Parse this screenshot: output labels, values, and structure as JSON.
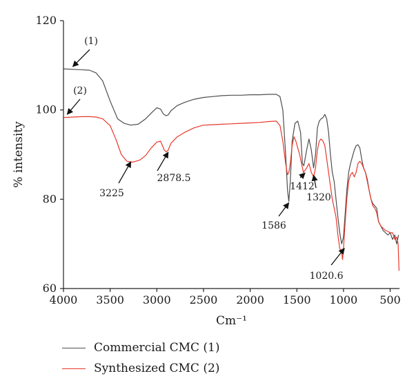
{
  "chart_data": {
    "type": "line",
    "xlabel": "Cm⁻¹",
    "ylabel": "% intensity",
    "xlim": [
      4000,
      400
    ],
    "ylim": [
      60,
      120
    ],
    "x_reversed": true,
    "grid": false,
    "xticks": [
      4000,
      3500,
      3000,
      2500,
      2000,
      1500,
      1000,
      500
    ],
    "yticks": [
      60,
      80,
      100,
      120
    ],
    "legend_position": "bottom-left",
    "series": [
      {
        "name": "Commercial CMC (1)",
        "label": "(1)",
        "color": "#4d4d4d",
        "x": [
          4000,
          3900,
          3800,
          3720,
          3650,
          3580,
          3500,
          3420,
          3350,
          3280,
          3200,
          3120,
          3050,
          3000,
          2960,
          2930,
          2900,
          2878,
          2850,
          2780,
          2700,
          2600,
          2500,
          2400,
          2300,
          2200,
          2100,
          2000,
          1900,
          1800,
          1720,
          1680,
          1650,
          1620,
          1600,
          1586,
          1570,
          1550,
          1520,
          1490,
          1460,
          1440,
          1425,
          1412,
          1395,
          1370,
          1345,
          1320,
          1300,
          1280,
          1260,
          1240,
          1220,
          1200,
          1180,
          1160,
          1140,
          1120,
          1100,
          1080,
          1060,
          1040,
          1020,
          1000,
          985,
          965,
          945,
          925,
          905,
          885,
          865,
          845,
          825,
          805,
          785,
          765,
          745,
          725,
          705,
          685,
          665,
          645,
          625,
          600,
          575,
          550,
          525,
          500,
          475,
          450,
          430,
          410
        ],
        "y": [
          109.2,
          109.1,
          109.0,
          108.9,
          108.3,
          106.5,
          102.0,
          98.0,
          97.0,
          96.6,
          96.8,
          98.0,
          99.5,
          100.5,
          100.2,
          99.1,
          98.7,
          98.9,
          99.8,
          101.0,
          101.7,
          102.4,
          102.8,
          103.0,
          103.2,
          103.3,
          103.3,
          103.4,
          103.4,
          103.5,
          103.5,
          103.0,
          100.0,
          90.0,
          82.0,
          79.5,
          84.0,
          93.0,
          97.0,
          97.5,
          95.0,
          88.0,
          87.5,
          89.0,
          91.0,
          93.5,
          91.0,
          87.0,
          90.0,
          96.0,
          97.5,
          98.0,
          98.3,
          99.0,
          98.0,
          95.0,
          90.0,
          86.0,
          84.0,
          80.0,
          76.0,
          72.5,
          70.0,
          71.5,
          76.0,
          82.0,
          86.0,
          88.0,
          89.5,
          91.0,
          92.0,
          92.2,
          91.5,
          89.0,
          87.0,
          86.0,
          84.5,
          82.0,
          80.0,
          79.0,
          78.5,
          78.0,
          75.0,
          74.0,
          73.0,
          72.5,
          72.0,
          72.5,
          71.0,
          72.0,
          70.0,
          72.0
        ]
      },
      {
        "name": "Synthesized CMC (2)",
        "label": "(2)",
        "color": "#e8372a",
        "x": [
          4000,
          3900,
          3800,
          3720,
          3650,
          3580,
          3500,
          3440,
          3380,
          3320,
          3260,
          3225,
          3180,
          3120,
          3060,
          3000,
          2960,
          2940,
          2920,
          2900,
          2878,
          2850,
          2780,
          2700,
          2600,
          2500,
          2400,
          2300,
          2200,
          2100,
          2000,
          1900,
          1800,
          1720,
          1680,
          1650,
          1620,
          1600,
          1586,
          1570,
          1550,
          1530,
          1510,
          1490,
          1470,
          1450,
          1430,
          1412,
          1395,
          1370,
          1345,
          1320,
          1300,
          1280,
          1260,
          1240,
          1220,
          1200,
          1180,
          1160,
          1140,
          1120,
          1100,
          1080,
          1060,
          1040,
          1020,
          1010,
          1000,
          985,
          965,
          945,
          925,
          905,
          885,
          865,
          845,
          825,
          805,
          785,
          765,
          745,
          725,
          705,
          685,
          665,
          645,
          625,
          600,
          575,
          550,
          525,
          500,
          475,
          450,
          430,
          415,
          405
        ],
        "y": [
          98.3,
          98.4,
          98.5,
          98.5,
          98.4,
          98.0,
          96.5,
          93.5,
          90.0,
          88.5,
          88.3,
          88.5,
          88.8,
          89.8,
          91.5,
          92.8,
          93.0,
          92.0,
          91.0,
          90.6,
          91.0,
          92.5,
          94.0,
          95.0,
          96.0,
          96.6,
          96.7,
          96.8,
          96.9,
          97.0,
          97.1,
          97.2,
          97.4,
          97.5,
          96.5,
          93.0,
          88.0,
          85.5,
          86.0,
          88.0,
          92.0,
          94.0,
          93.0,
          91.5,
          90.0,
          88.0,
          86.0,
          86.5,
          87.0,
          88.0,
          86.0,
          85.0,
          87.0,
          91.0,
          93.0,
          93.5,
          93.0,
          92.0,
          89.0,
          86.0,
          83.0,
          80.0,
          78.0,
          76.0,
          72.0,
          69.0,
          68.0,
          66.5,
          69.0,
          74.0,
          80.0,
          84.0,
          85.5,
          86.0,
          85.0,
          86.0,
          88.0,
          88.5,
          88.0,
          87.0,
          86.0,
          84.0,
          82.0,
          80.0,
          78.5,
          78.0,
          77.0,
          75.0,
          74.0,
          73.5,
          73.0,
          72.8,
          72.5,
          72.5,
          71.0,
          71.5,
          70.0,
          64.0
        ]
      }
    ],
    "annotations": [
      {
        "text": "(1)",
        "target": [
          3900,
          109.1
        ]
      },
      {
        "text": "(2)",
        "target": [
          3960,
          98.4
        ]
      },
      {
        "text": "3225",
        "target": [
          3300,
          88.4
        ]
      },
      {
        "text": "2878.5",
        "target": [
          2878,
          91.0
        ]
      },
      {
        "text": "1586",
        "target": [
          1586,
          79.5
        ]
      },
      {
        "text": "1412",
        "target": [
          1412,
          86.5
        ]
      },
      {
        "text": "1320",
        "target": [
          1320,
          86.0
        ]
      },
      {
        "text": "1020.6",
        "target": [
          1020,
          69.0
        ]
      }
    ]
  }
}
